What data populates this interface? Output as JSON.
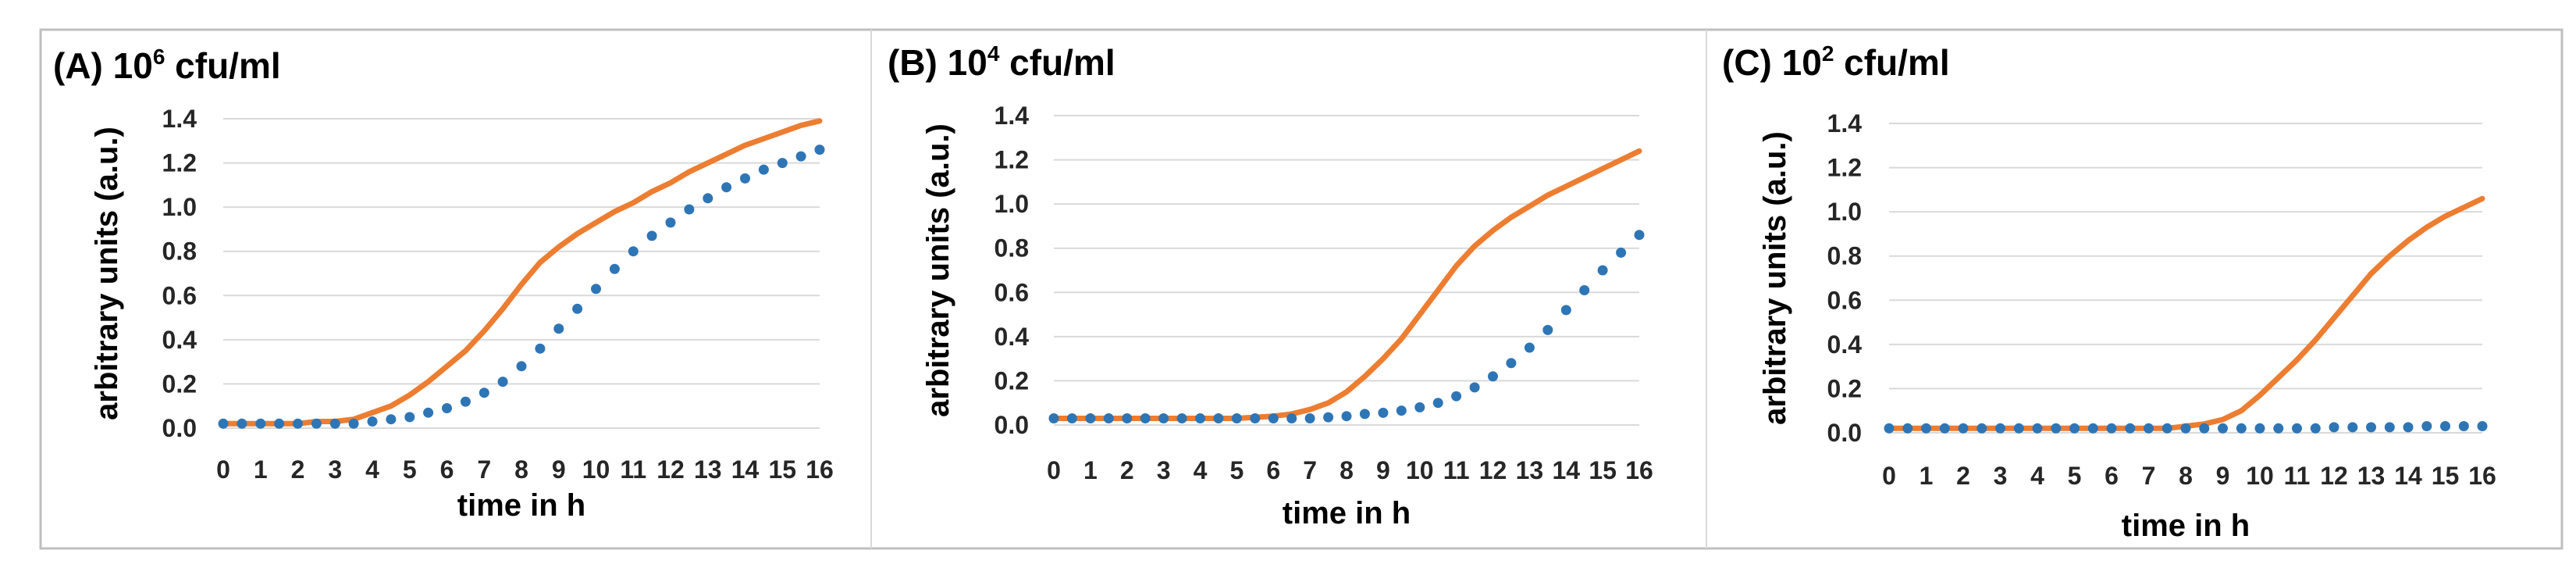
{
  "figure": {
    "panel_count": 3
  },
  "colors": {
    "line_series": "#ED7D31",
    "dotted_series": "#2E75B6",
    "grid": "#D9D9D9",
    "frame": "#BFBFBF",
    "text": "#000000",
    "tick_text": "#262626"
  },
  "chart_data": [
    {
      "type": "line",
      "label": "(A)",
      "title_base": "10",
      "title_exp": "6",
      "title_unit": " cfu/ml",
      "xlabel": "time in h",
      "ylabel": "arbitrary units (a.u.)",
      "xlim": [
        0,
        16
      ],
      "ylim": [
        0,
        1.4
      ],
      "x_ticks": [
        "0",
        "1",
        "2",
        "3",
        "4",
        "5",
        "6",
        "7",
        "8",
        "9",
        "10",
        "11",
        "12",
        "13",
        "14",
        "15",
        "16"
      ],
      "y_ticks": [
        "0.0",
        "0.2",
        "0.4",
        "0.6",
        "0.8",
        "1.0",
        "1.2",
        "1.4"
      ],
      "grid": true,
      "legend": "none",
      "series": [
        {
          "style": "solid",
          "color": "#ED7D31",
          "x": [
            0,
            0.5,
            1,
            1.5,
            2,
            2.5,
            3,
            3.5,
            4,
            4.5,
            5,
            5.5,
            6,
            6.5,
            7,
            7.5,
            8,
            8.5,
            9,
            9.5,
            10,
            10.5,
            11,
            11.5,
            12,
            12.5,
            13,
            13.5,
            14,
            14.5,
            15,
            15.5,
            16
          ],
          "values": [
            0.02,
            0.02,
            0.02,
            0.02,
            0.02,
            0.03,
            0.03,
            0.04,
            0.07,
            0.1,
            0.15,
            0.21,
            0.28,
            0.35,
            0.44,
            0.54,
            0.65,
            0.75,
            0.82,
            0.88,
            0.93,
            0.98,
            1.02,
            1.07,
            1.11,
            1.16,
            1.2,
            1.24,
            1.28,
            1.31,
            1.34,
            1.37,
            1.39
          ]
        },
        {
          "style": "dotted",
          "color": "#2E75B6",
          "x": [
            0,
            0.5,
            1,
            1.5,
            2,
            2.5,
            3,
            3.5,
            4,
            4.5,
            5,
            5.5,
            6,
            6.5,
            7,
            7.5,
            8,
            8.5,
            9,
            9.5,
            10,
            10.5,
            11,
            11.5,
            12,
            12.5,
            13,
            13.5,
            14,
            14.5,
            15,
            15.5,
            16
          ],
          "values": [
            0.02,
            0.02,
            0.02,
            0.02,
            0.02,
            0.02,
            0.02,
            0.02,
            0.03,
            0.04,
            0.05,
            0.07,
            0.09,
            0.12,
            0.16,
            0.21,
            0.28,
            0.36,
            0.45,
            0.54,
            0.63,
            0.72,
            0.8,
            0.87,
            0.93,
            0.99,
            1.04,
            1.09,
            1.13,
            1.17,
            1.2,
            1.23,
            1.26
          ]
        }
      ]
    },
    {
      "type": "line",
      "label": "(B)",
      "title_base": "10",
      "title_exp": "4",
      "title_unit": " cfu/ml",
      "xlabel": "time in h",
      "ylabel": "arbitrary units (a.u.)",
      "xlim": [
        0,
        16
      ],
      "ylim": [
        0,
        1.4
      ],
      "x_ticks": [
        "0",
        "1",
        "2",
        "3",
        "4",
        "5",
        "6",
        "7",
        "8",
        "9",
        "10",
        "11",
        "12",
        "13",
        "14",
        "15",
        "16"
      ],
      "y_ticks": [
        "0.0",
        "0.2",
        "0.4",
        "0.6",
        "0.8",
        "1.0",
        "1.2",
        "1.4"
      ],
      "grid": true,
      "legend": "none",
      "series": [
        {
          "style": "solid",
          "color": "#ED7D31",
          "x": [
            0,
            0.5,
            1,
            1.5,
            2,
            2.5,
            3,
            3.5,
            4,
            4.5,
            5,
            5.5,
            6,
            6.5,
            7,
            7.5,
            8,
            8.5,
            9,
            9.5,
            10,
            10.5,
            11,
            11.5,
            12,
            12.5,
            13,
            13.5,
            14,
            14.5,
            15,
            15.5,
            16
          ],
          "values": [
            0.03,
            0.03,
            0.03,
            0.03,
            0.03,
            0.03,
            0.03,
            0.03,
            0.03,
            0.03,
            0.03,
            0.035,
            0.04,
            0.05,
            0.07,
            0.1,
            0.15,
            0.22,
            0.3,
            0.39,
            0.5,
            0.61,
            0.72,
            0.81,
            0.88,
            0.94,
            0.99,
            1.04,
            1.08,
            1.12,
            1.16,
            1.2,
            1.24
          ]
        },
        {
          "style": "dotted",
          "color": "#2E75B6",
          "x": [
            0,
            0.5,
            1,
            1.5,
            2,
            2.5,
            3,
            3.5,
            4,
            4.5,
            5,
            5.5,
            6,
            6.5,
            7,
            7.5,
            8,
            8.5,
            9,
            9.5,
            10,
            10.5,
            11,
            11.5,
            12,
            12.5,
            13,
            13.5,
            14,
            14.5,
            15,
            15.5,
            16
          ],
          "values": [
            0.03,
            0.03,
            0.03,
            0.03,
            0.03,
            0.03,
            0.03,
            0.03,
            0.03,
            0.03,
            0.03,
            0.03,
            0.03,
            0.03,
            0.03,
            0.035,
            0.04,
            0.05,
            0.055,
            0.065,
            0.08,
            0.1,
            0.13,
            0.17,
            0.22,
            0.28,
            0.35,
            0.43,
            0.52,
            0.61,
            0.7,
            0.78,
            0.86
          ]
        }
      ]
    },
    {
      "type": "line",
      "label": "(C)",
      "title_base": "10",
      "title_exp": "2",
      "title_unit": " cfu/ml",
      "xlabel": "time in h",
      "ylabel": "arbitrary units (a.u.)",
      "xlim": [
        0,
        16
      ],
      "ylim": [
        0,
        1.4
      ],
      "x_ticks": [
        "0",
        "1",
        "2",
        "3",
        "4",
        "5",
        "6",
        "7",
        "8",
        "9",
        "10",
        "11",
        "12",
        "13",
        "14",
        "15",
        "16"
      ],
      "y_ticks": [
        "0.0",
        "0.2",
        "0.4",
        "0.6",
        "0.8",
        "1.0",
        "1.2",
        "1.4"
      ],
      "grid": true,
      "legend": "none",
      "series": [
        {
          "style": "solid",
          "color": "#ED7D31",
          "x": [
            0,
            0.5,
            1,
            1.5,
            2,
            2.5,
            3,
            3.5,
            4,
            4.5,
            5,
            5.5,
            6,
            6.5,
            7,
            7.5,
            8,
            8.5,
            9,
            9.5,
            10,
            10.5,
            11,
            11.5,
            12,
            12.5,
            13,
            13.5,
            14,
            14.5,
            15,
            15.5,
            16
          ],
          "values": [
            0.02,
            0.02,
            0.02,
            0.02,
            0.02,
            0.02,
            0.02,
            0.02,
            0.02,
            0.02,
            0.02,
            0.02,
            0.02,
            0.02,
            0.02,
            0.02,
            0.03,
            0.04,
            0.06,
            0.1,
            0.17,
            0.25,
            0.33,
            0.42,
            0.52,
            0.62,
            0.72,
            0.8,
            0.87,
            0.93,
            0.98,
            1.02,
            1.06
          ]
        },
        {
          "style": "dotted",
          "color": "#2E75B6",
          "x": [
            0,
            0.5,
            1,
            1.5,
            2,
            2.5,
            3,
            3.5,
            4,
            4.5,
            5,
            5.5,
            6,
            6.5,
            7,
            7.5,
            8,
            8.5,
            9,
            9.5,
            10,
            10.5,
            11,
            11.5,
            12,
            12.5,
            13,
            13.5,
            14,
            14.5,
            15,
            15.5,
            16
          ],
          "values": [
            0.02,
            0.02,
            0.02,
            0.02,
            0.02,
            0.02,
            0.02,
            0.02,
            0.02,
            0.02,
            0.02,
            0.02,
            0.02,
            0.02,
            0.02,
            0.02,
            0.02,
            0.02,
            0.02,
            0.02,
            0.02,
            0.02,
            0.02,
            0.02,
            0.025,
            0.025,
            0.025,
            0.025,
            0.025,
            0.03,
            0.03,
            0.03,
            0.03
          ]
        }
      ]
    }
  ]
}
